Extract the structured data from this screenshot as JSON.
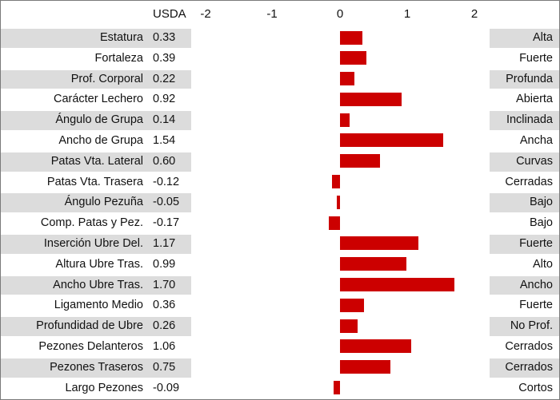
{
  "header": {
    "scale_label": "USDA",
    "ticks": [
      "-2",
      "-1",
      "0",
      "1",
      "2"
    ]
  },
  "colors": {
    "bar": "#cc0000",
    "band_shaded": "#dcdcdc",
    "band_plain": "#ffffff"
  },
  "chart_data": {
    "type": "bar",
    "orientation": "horizontal",
    "xlim": [
      -2,
      2
    ],
    "x_ticks": [
      -2,
      -1,
      0,
      1,
      2
    ],
    "title": "",
    "xlabel": "",
    "ylabel": "",
    "categories": [
      "Estatura",
      "Fortaleza",
      "Prof. Corporal",
      "Carácter Lechero",
      "Ángulo de Grupa",
      "Ancho de Grupa",
      "Patas Vta. Lateral",
      "Patas Vta. Trasera",
      "Ángulo Pezuña",
      "Comp. Patas y Pez.",
      "Inserción Ubre Del.",
      "Altura Ubre Tras.",
      "Ancho Ubre Tras.",
      "Ligamento Medio",
      "Profundidad de Ubre",
      "Pezones Delanteros",
      "Pezones Traseros",
      "Largo Pezones"
    ],
    "value_labels": [
      "0.33",
      "0.39",
      "0.22",
      "0.92",
      "0.14",
      "1.54",
      "0.60",
      "-0.12",
      "-0.05",
      "-0.17",
      "1.17",
      "0.99",
      "1.70",
      "0.36",
      "0.26",
      "1.06",
      "0.75",
      "-0.09"
    ],
    "values": [
      0.33,
      0.39,
      0.22,
      0.92,
      0.14,
      1.54,
      0.6,
      -0.12,
      -0.05,
      -0.17,
      1.17,
      0.99,
      1.7,
      0.36,
      0.26,
      1.06,
      0.75,
      -0.09
    ],
    "descriptors": [
      "Alta",
      "Fuerte",
      "Profunda",
      "Abierta",
      "Inclinada",
      "Ancha",
      "Curvas",
      "Cerradas",
      "Bajo",
      "Bajo",
      "Fuerte",
      "Alto",
      "Ancho",
      "Fuerte",
      "No Prof.",
      "Cerrados",
      "Cerrados",
      "Cortos"
    ]
  }
}
